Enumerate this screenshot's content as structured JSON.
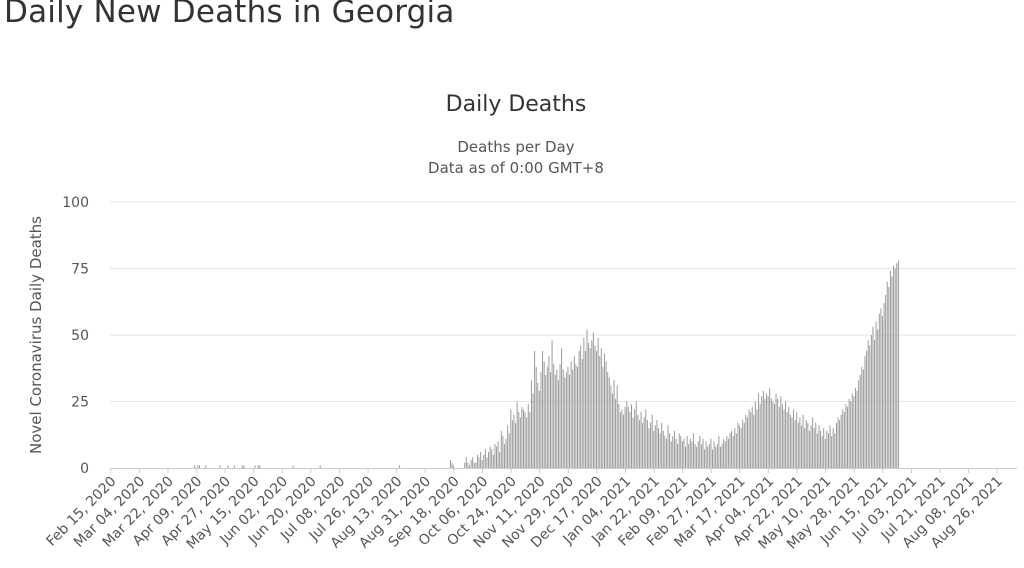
{
  "page": {
    "title": "Daily New Deaths in Georgia"
  },
  "chart_data": {
    "type": "bar",
    "title": "Daily Deaths",
    "subtitle_lines": [
      "Deaths per Day",
      "Data as of 0:00 GMT+8"
    ],
    "xlabel": "",
    "ylabel": "Novel Coronavirus Daily Deaths",
    "ylim": [
      0,
      100
    ],
    "y_ticks": [
      0,
      25,
      50,
      75,
      100
    ],
    "x_start": "2020-02-15",
    "x_end": "2021-09-07",
    "x_tick_labels": [
      "Feb 15, 2020",
      "Mar 04, 2020",
      "Mar 22, 2020",
      "Apr 09, 2020",
      "Apr 27, 2020",
      "May 15, 2020",
      "Jun 02, 2020",
      "Jun 20, 2020",
      "Jul 08, 2020",
      "Jul 26, 2020",
      "Aug 13, 2020",
      "Aug 31, 2020",
      "Sep 18, 2020",
      "Oct 06, 2020",
      "Oct 24, 2020",
      "Nov 11, 2020",
      "Nov 29, 2020",
      "Dec 17, 2020",
      "Jan 04, 2021",
      "Jan 22, 2021",
      "Feb 09, 2021",
      "Feb 27, 2021",
      "Mar 17, 2021",
      "Apr 04, 2021",
      "Apr 22, 2021",
      "May 10, 2021",
      "May 28, 2021",
      "Jun 15, 2021",
      "Jul 03, 2021",
      "Jul 21, 2021",
      "Aug 08, 2021",
      "Aug 26, 2021"
    ],
    "grid": true,
    "colors": {
      "bar": "#999999",
      "grid": "#e6e6e6",
      "axis_text": "#555555",
      "title": "#333333"
    },
    "values": [
      0,
      0,
      0,
      0,
      0,
      0,
      0,
      0,
      0,
      0,
      0,
      0,
      0,
      0,
      0,
      0,
      0,
      0,
      0,
      0,
      0,
      0,
      0,
      0,
      0,
      0,
      0,
      0,
      0,
      0,
      0,
      0,
      0,
      0,
      0,
      0,
      0,
      0,
      0,
      0,
      0,
      0,
      0,
      0,
      0,
      0,
      0,
      0,
      0,
      0,
      0,
      0,
      0,
      1,
      0,
      1,
      1,
      0,
      0,
      0,
      1,
      0,
      0,
      0,
      0,
      0,
      0,
      0,
      0,
      1,
      0,
      0,
      0,
      0,
      1,
      0,
      0,
      0,
      1,
      0,
      0,
      0,
      0,
      1,
      1,
      0,
      0,
      0,
      0,
      0,
      0,
      1,
      0,
      1,
      1,
      0,
      0,
      0,
      0,
      0,
      0,
      0,
      0,
      0,
      0,
      0,
      0,
      0,
      0,
      0,
      0,
      0,
      0,
      0,
      0,
      1,
      0,
      0,
      0,
      0,
      0,
      0,
      0,
      0,
      0,
      0,
      0,
      0,
      0,
      0,
      0,
      0,
      1,
      0,
      0,
      0,
      0,
      0,
      0,
      0,
      0,
      0,
      0,
      0,
      0,
      0,
      0,
      0,
      0,
      0,
      0,
      0,
      0,
      0,
      0,
      0,
      0,
      0,
      0,
      0,
      0,
      0,
      0,
      0,
      0,
      0,
      0,
      0,
      0,
      0,
      0,
      0,
      0,
      0,
      0,
      0,
      0,
      0,
      0,
      0,
      0,
      0,
      1,
      0,
      0,
      0,
      0,
      0,
      0,
      0,
      0,
      0,
      0,
      0,
      0,
      0,
      0,
      0,
      0,
      0,
      0,
      0,
      0,
      0,
      0,
      0,
      0,
      0,
      0,
      0,
      0,
      0,
      0,
      0,
      3,
      2,
      1,
      0,
      0,
      0,
      0,
      0,
      0,
      2,
      4,
      2,
      1,
      3,
      4,
      2,
      2,
      5,
      4,
      6,
      3,
      5,
      7,
      4,
      6,
      8,
      7,
      5,
      9,
      8,
      10,
      6,
      14,
      12,
      9,
      11,
      16,
      13,
      22,
      18,
      20,
      17,
      25,
      21,
      19,
      23,
      22,
      21,
      19,
      24,
      21,
      33,
      28,
      44,
      38,
      32,
      29,
      36,
      44,
      40,
      35,
      38,
      42,
      36,
      48,
      39,
      35,
      37,
      33,
      39,
      45,
      37,
      34,
      36,
      38,
      35,
      40,
      37,
      42,
      39,
      38,
      44,
      46,
      41,
      49,
      44,
      52,
      47,
      45,
      48,
      51,
      46,
      44,
      49,
      42,
      45,
      38,
      43,
      40,
      36,
      34,
      31,
      28,
      33,
      26,
      31,
      24,
      21,
      22,
      20,
      23,
      25,
      23,
      21,
      24,
      19,
      22,
      25,
      20,
      18,
      21,
      17,
      19,
      22,
      18,
      15,
      17,
      20,
      14,
      16,
      18,
      15,
      13,
      17,
      14,
      12,
      11,
      16,
      13,
      10,
      12,
      14,
      11,
      9,
      13,
      12,
      10,
      11,
      8,
      12,
      9,
      11,
      10,
      13,
      9,
      8,
      10,
      12,
      9,
      11,
      7,
      10,
      8,
      9,
      11,
      7,
      10,
      8,
      9,
      12,
      8,
      9,
      11,
      10,
      12,
      11,
      13,
      14,
      12,
      15,
      13,
      17,
      16,
      15,
      18,
      17,
      20,
      19,
      22,
      21,
      23,
      20,
      25,
      22,
      28,
      24,
      27,
      29,
      26,
      28,
      27,
      30,
      26,
      25,
      24,
      28,
      26,
      23,
      27,
      24,
      22,
      25,
      21,
      23,
      20,
      19,
      22,
      18,
      21,
      17,
      19,
      16,
      20,
      15,
      18,
      17,
      14,
      16,
      19,
      15,
      17,
      13,
      16,
      14,
      12,
      15,
      11,
      14,
      13,
      16,
      12,
      15,
      13,
      17,
      19,
      18,
      20,
      22,
      21,
      24,
      23,
      26,
      25,
      28,
      27,
      30,
      29,
      33,
      35,
      38,
      37,
      42,
      44,
      48,
      46,
      50,
      53,
      48,
      55,
      52,
      58,
      60,
      57,
      62,
      65,
      70,
      68,
      74,
      72,
      76,
      75,
      77,
      78
    ]
  }
}
